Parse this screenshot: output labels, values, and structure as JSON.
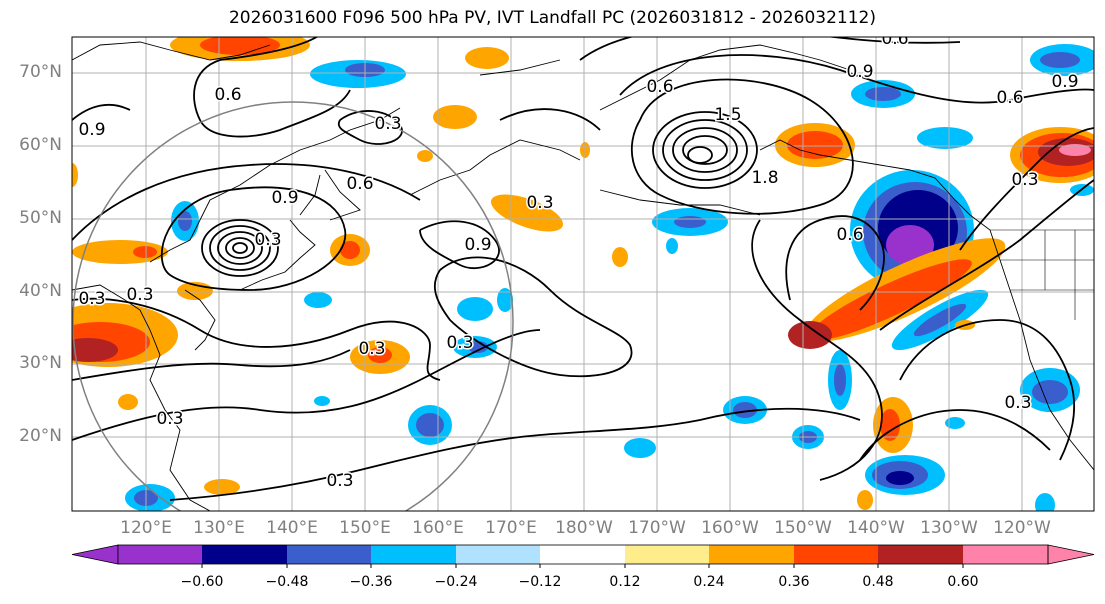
{
  "title": "2026031600 F096 500 hPa PV, IVT Landfall PC (2026031812 - 2026032112)",
  "lat_labels": [
    "70°N",
    "60°N",
    "50°N",
    "40°N",
    "30°N",
    "20°N"
  ],
  "lon_labels": [
    "120°E",
    "130°E",
    "140°E",
    "150°E",
    "160°E",
    "170°E",
    "180°W",
    "170°W",
    "160°W",
    "150°W",
    "140°W",
    "130°W",
    "120°W"
  ],
  "contour_labels": [
    "0.6",
    "0.9",
    "0.3",
    "0.6",
    "0.3",
    "0.6",
    "0.9",
    "0.6",
    "0.3",
    "0.9",
    "1.5",
    "1.8",
    "0.9",
    "0.6",
    "0.3",
    "0.9",
    "0.6",
    "0.3",
    "0.3",
    "0.3",
    "0.3",
    "0.3",
    "0.3",
    "0.3"
  ],
  "colorbar": {
    "levels": [
      "−0.60",
      "−0.48",
      "−0.36",
      "−0.24",
      "−0.12",
      "0.12",
      "0.24",
      "0.36",
      "0.48",
      "0.60"
    ],
    "colors": [
      "#9932cc",
      "#00008b",
      "#3a5fcd",
      "#00bfff",
      "#b0e2ff",
      "#ffffff",
      "#ffec8b",
      "#ffa500",
      "#ff4500",
      "#b22222",
      "#ff82ab"
    ]
  },
  "colors": {
    "purple": "#9932cc",
    "navy": "#00008b",
    "blue": "#3a5fcd",
    "sky": "#00bfff",
    "lightblue": "#b0e2ff",
    "yellow": "#ffec8b",
    "orange": "#ffa500",
    "red": "#ff4500",
    "darkred": "#b22222",
    "pink": "#ff82ab",
    "grid": "#b0b0b0",
    "circle": "#808080"
  }
}
